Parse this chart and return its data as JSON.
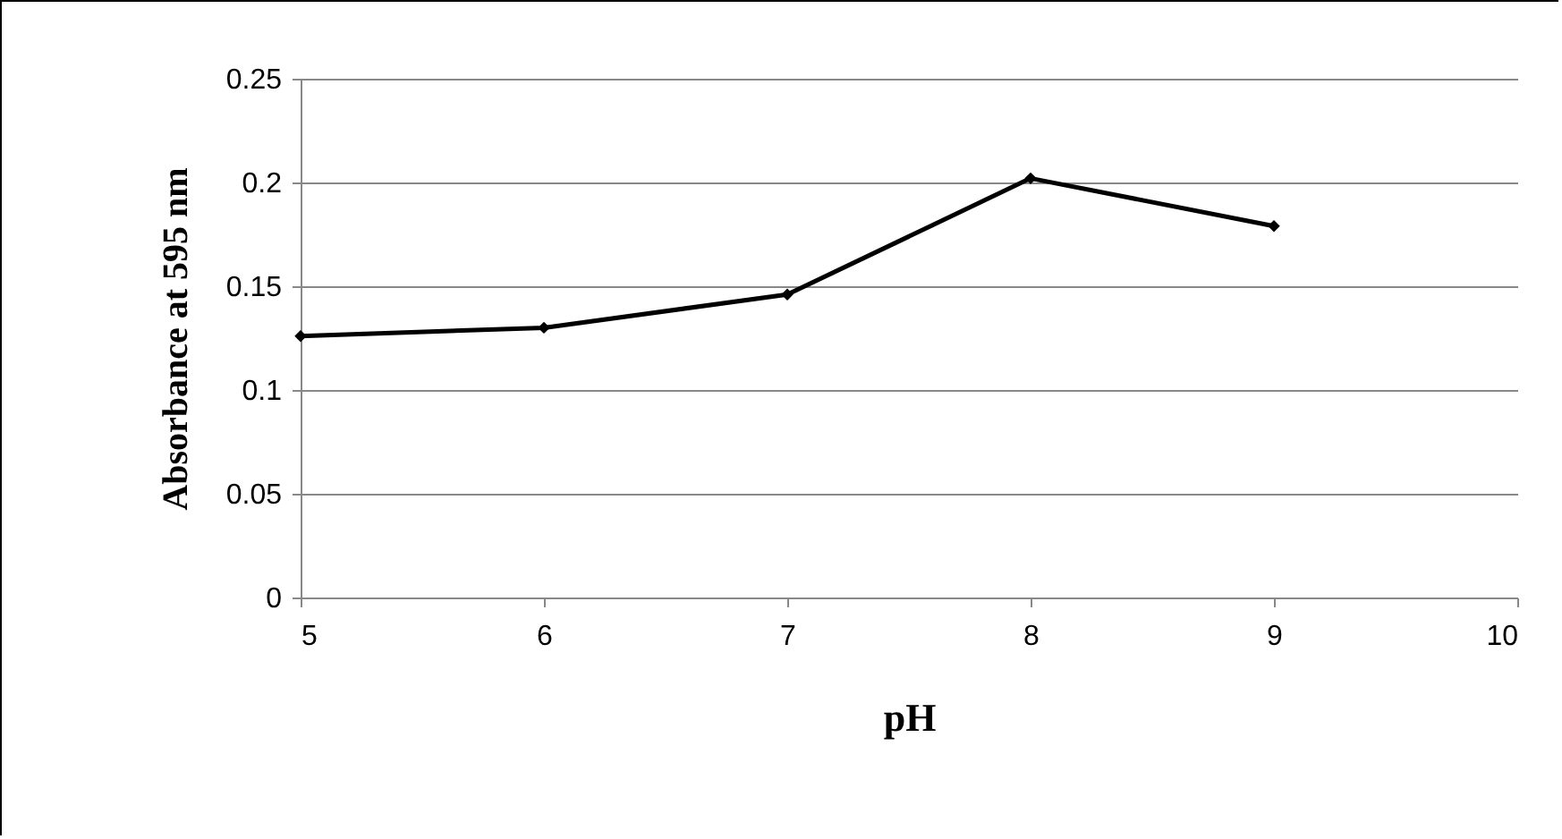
{
  "chart_data": {
    "type": "line",
    "xlabel": "pH",
    "ylabel": "Absorbance at 595 nm",
    "x": [
      5,
      6,
      7,
      8,
      9
    ],
    "series": [
      {
        "color": "#000000",
        "values": [
          0.126,
          0.13,
          0.146,
          0.202,
          0.179
        ]
      }
    ],
    "xlim": [
      5,
      10
    ],
    "xticks": [
      5,
      6,
      7,
      8,
      9,
      10
    ],
    "ylim": [
      0,
      0.25
    ],
    "yticks": [
      0,
      0.05,
      0.1,
      0.15,
      0.2,
      0.25
    ],
    "grid": "y",
    "marker": "diamond",
    "line_style": "solid"
  }
}
